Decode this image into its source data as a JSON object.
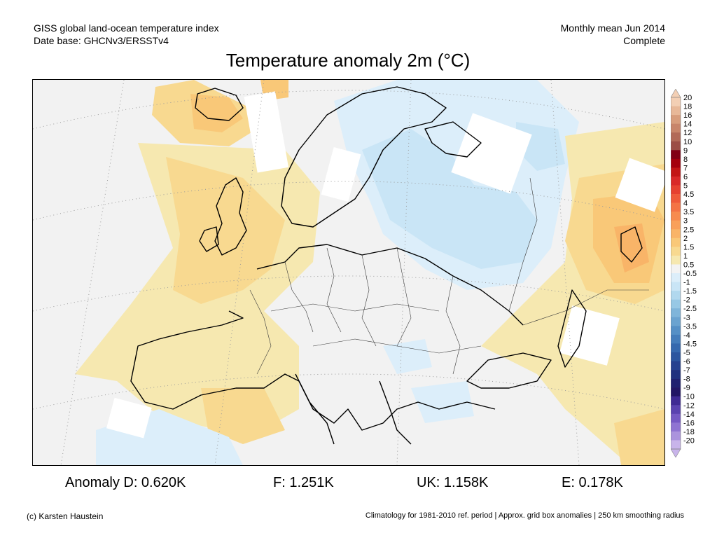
{
  "header": {
    "line1": "GISS global land-ocean temperature index",
    "line2": "Date base: GHCNv3/ERSSTv4",
    "period": "Monthly mean Jun 2014",
    "status": "Complete"
  },
  "title": "Temperature anomaly 2m (°C)",
  "legend": {
    "labels": [
      "20",
      "18",
      "16",
      "14",
      "12",
      "10",
      "9",
      "8",
      "7",
      "6",
      "5",
      "4.5",
      "4",
      "3.5",
      "3",
      "2.5",
      "2",
      "1.5",
      "1",
      "0.5",
      "-0.5",
      "-1",
      "-1.5",
      "-2",
      "-2.5",
      "-3",
      "-3.5",
      "-4",
      "-4.5",
      "-5",
      "-6",
      "-7",
      "-8",
      "-9",
      "-10",
      "-12",
      "-14",
      "-16",
      "-18",
      "-20"
    ],
    "colors": [
      "#f3cfb4",
      "#e8b898",
      "#d89d7c",
      "#c8856a",
      "#b26a58",
      "#9c4e46",
      "#820014",
      "#a5000d",
      "#c31515",
      "#d92828",
      "#e64030",
      "#ef5a3a",
      "#f47345",
      "#f78b4f",
      "#f9a05a",
      "#f9b468",
      "#f9c878",
      "#f8d990",
      "#f6e8b0",
      "#f3f3f3",
      "#dceefa",
      "#c9e5f6",
      "#b1d8ee",
      "#97c8e5",
      "#7fb5da",
      "#6aa3d0",
      "#5590c6",
      "#447dbb",
      "#3569ae",
      "#2b569f",
      "#25418f",
      "#20307f",
      "#1f2070",
      "#221665",
      "#3f2a94",
      "#5a42b0",
      "#7559c4",
      "#8f74d2",
      "#ab93dd",
      "#c8b4ea"
    ]
  },
  "stats": {
    "d": "Anomaly D: 0.620K",
    "f": "F: 1.251K",
    "uk": "UK: 1.158K",
    "e": "E: 0.178K"
  },
  "footer": {
    "left": "(c) Karsten Haustein",
    "right": "Climatology for 1981-2010 ref. period | Approx. grid box anomalies | 250 km smoothing radius"
  }
}
